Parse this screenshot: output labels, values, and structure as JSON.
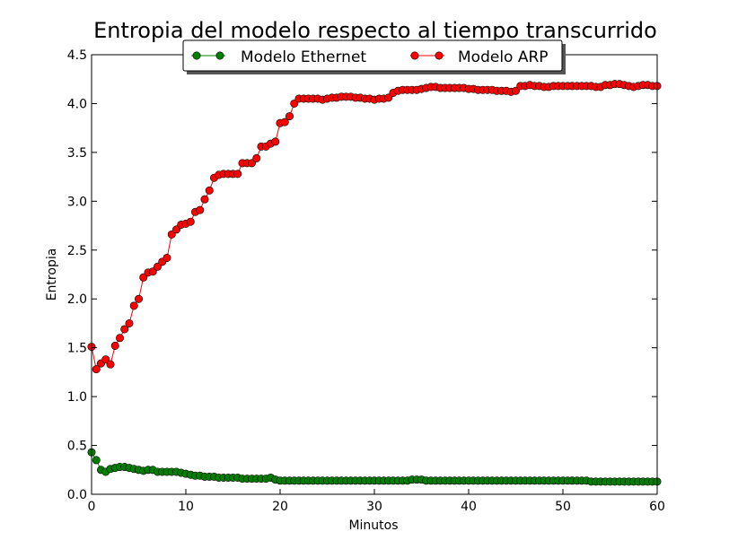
{
  "chart_data": {
    "type": "line",
    "title": "Entropia del modelo respecto al tiempo transcurrido",
    "xlabel": "Minutos",
    "ylabel": "Entropia",
    "xlim": [
      0,
      60
    ],
    "ylim": [
      0.0,
      4.5
    ],
    "xticks": [
      "0",
      "10",
      "20",
      "30",
      "40",
      "50",
      "60"
    ],
    "yticks": [
      "0.0",
      "0.5",
      "1.0",
      "1.5",
      "2.0",
      "2.5",
      "3.0",
      "3.5",
      "4.0",
      "4.5"
    ],
    "grid": false,
    "legend_position": "top-center",
    "x": [
      0,
      0.5,
      1,
      1.5,
      2,
      2.5,
      3,
      3.5,
      4,
      4.5,
      5,
      5.5,
      6,
      6.5,
      7,
      7.5,
      8,
      8.5,
      9,
      9.5,
      10,
      10.5,
      11,
      11.5,
      12,
      12.5,
      13,
      13.5,
      14,
      14.5,
      15,
      15.5,
      16,
      16.5,
      17,
      17.5,
      18,
      18.5,
      19,
      19.5,
      20,
      20.5,
      21,
      21.5,
      22,
      22.5,
      23,
      23.5,
      24,
      24.5,
      25,
      25.5,
      26,
      26.5,
      27,
      27.5,
      28,
      28.5,
      29,
      29.5,
      30,
      30.5,
      31,
      31.5,
      32,
      32.5,
      33,
      33.5,
      34,
      34.5,
      35,
      35.5,
      36,
      36.5,
      37,
      37.5,
      38,
      38.5,
      39,
      39.5,
      40,
      40.5,
      41,
      41.5,
      42,
      42.5,
      43,
      43.5,
      44,
      44.5,
      45,
      45.5,
      46,
      46.5,
      47,
      47.5,
      48,
      48.5,
      49,
      49.5,
      50,
      50.5,
      51,
      51.5,
      52,
      52.5,
      53,
      53.5,
      54,
      54.5,
      55,
      55.5,
      56,
      56.5,
      57,
      57.5,
      58,
      58.5,
      59,
      59.5,
      60
    ],
    "series": [
      {
        "name": "Modelo Ethernet",
        "color": "#008000",
        "values": [
          0.43,
          0.35,
          0.25,
          0.23,
          0.26,
          0.27,
          0.28,
          0.28,
          0.27,
          0.26,
          0.25,
          0.24,
          0.25,
          0.25,
          0.23,
          0.23,
          0.23,
          0.23,
          0.23,
          0.22,
          0.21,
          0.2,
          0.19,
          0.19,
          0.18,
          0.18,
          0.18,
          0.17,
          0.17,
          0.17,
          0.17,
          0.17,
          0.16,
          0.16,
          0.16,
          0.16,
          0.16,
          0.16,
          0.17,
          0.15,
          0.14,
          0.14,
          0.14,
          0.14,
          0.14,
          0.14,
          0.14,
          0.14,
          0.14,
          0.14,
          0.14,
          0.14,
          0.14,
          0.14,
          0.14,
          0.14,
          0.14,
          0.14,
          0.14,
          0.14,
          0.14,
          0.14,
          0.14,
          0.14,
          0.14,
          0.14,
          0.14,
          0.14,
          0.15,
          0.15,
          0.15,
          0.14,
          0.14,
          0.14,
          0.14,
          0.14,
          0.14,
          0.14,
          0.14,
          0.14,
          0.14,
          0.14,
          0.14,
          0.14,
          0.14,
          0.14,
          0.14,
          0.14,
          0.14,
          0.14,
          0.14,
          0.14,
          0.14,
          0.14,
          0.14,
          0.14,
          0.14,
          0.14,
          0.14,
          0.14,
          0.14,
          0.14,
          0.14,
          0.14,
          0.14,
          0.14,
          0.13,
          0.13,
          0.13,
          0.13,
          0.13,
          0.13,
          0.13,
          0.13,
          0.13,
          0.13,
          0.13,
          0.13,
          0.13,
          0.13,
          0.13
        ]
      },
      {
        "name": "Modelo ARP",
        "color": "#ff0000",
        "values": [
          1.51,
          1.28,
          1.34,
          1.38,
          1.33,
          1.52,
          1.6,
          1.69,
          1.75,
          1.93,
          2.0,
          2.22,
          2.27,
          2.28,
          2.33,
          2.38,
          2.42,
          2.66,
          2.71,
          2.76,
          2.77,
          2.79,
          2.89,
          2.91,
          3.02,
          3.11,
          3.24,
          3.27,
          3.28,
          3.28,
          3.28,
          3.28,
          3.39,
          3.39,
          3.39,
          3.44,
          3.56,
          3.56,
          3.59,
          3.61,
          3.8,
          3.81,
          3.87,
          4.0,
          4.05,
          4.05,
          4.05,
          4.05,
          4.05,
          4.04,
          4.05,
          4.06,
          4.06,
          4.07,
          4.07,
          4.07,
          4.06,
          4.06,
          4.05,
          4.05,
          4.04,
          4.05,
          4.05,
          4.06,
          4.11,
          4.13,
          4.14,
          4.14,
          4.14,
          4.14,
          4.15,
          4.16,
          4.17,
          4.17,
          4.16,
          4.16,
          4.16,
          4.16,
          4.16,
          4.16,
          4.15,
          4.15,
          4.14,
          4.14,
          4.14,
          4.14,
          4.13,
          4.13,
          4.13,
          4.12,
          4.13,
          4.18,
          4.18,
          4.19,
          4.18,
          4.18,
          4.17,
          4.17,
          4.18,
          4.18,
          4.18,
          4.18,
          4.18,
          4.18,
          4.18,
          4.18,
          4.18,
          4.17,
          4.17,
          4.19,
          4.19,
          4.2,
          4.2,
          4.19,
          4.18,
          4.17,
          4.18,
          4.19,
          4.19,
          4.18,
          4.18
        ]
      }
    ]
  }
}
